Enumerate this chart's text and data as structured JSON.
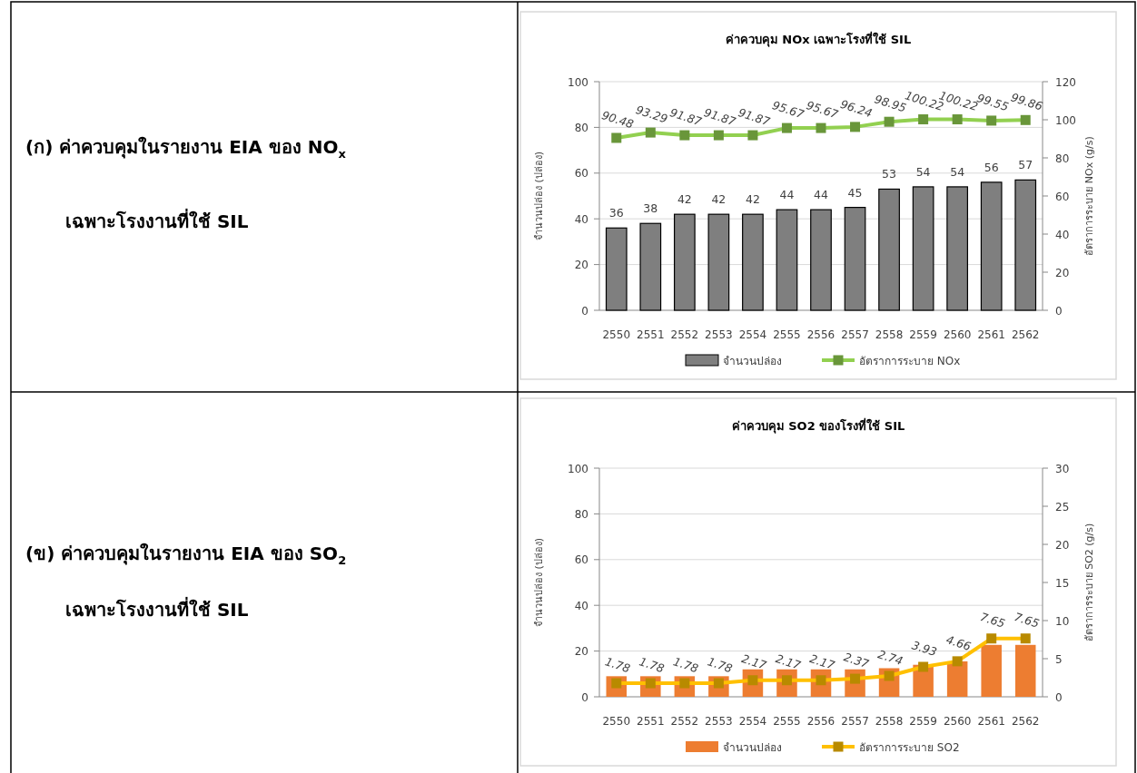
{
  "chart_data": [
    {
      "type": "bar",
      "title": "ค่าควบคุม NOx เฉพาะโรงที่ใช้ SIL",
      "ylabel": "จำนวนปล่อง (ปล่อง)",
      "y2label": "อัตราการระบาย NOx (g/s)",
      "annotations": [
        "(ก) ค่าควบคุมในรายงาน EIA ของ NO$_{x}$",
        "เฉพาะโรงงานที่ใช้ SIL"
      ],
      "categories": [
        "2550",
        "2551",
        "2552",
        "2553",
        "2554",
        "2555",
        "2556",
        "2557",
        "2558",
        "2559",
        "2560",
        "2561",
        "2562"
      ],
      "series": [
        {
          "name": "จำนวนปล่อง",
          "color": "#7f7f7f",
          "values": [
            36,
            38,
            42,
            42,
            42,
            44,
            44,
            45,
            53,
            54,
            54,
            56,
            57
          ],
          "value_labels": [
            "36",
            "38",
            "42",
            "42",
            "42",
            "44",
            "44",
            "45",
            "53",
            "54",
            "54",
            "56",
            "57"
          ]
        },
        {
          "name": "อัตราการระบาย NOx",
          "type": "line",
          "axis": "y2",
          "color": "#92d050",
          "marker": "square",
          "values": [
            90.48,
            93.29,
            91.87,
            91.87,
            91.87,
            95.67,
            95.67,
            96.24,
            98.95,
            100.22,
            100.22,
            99.55,
            99.86
          ],
          "value_labels": [
            "90.48",
            "93.29",
            "91.87",
            "91.87",
            "91.87",
            "95.67",
            "95.67",
            "96.24",
            "98.95",
            "100.22",
            "100.22",
            "99.55",
            "99.86"
          ]
        }
      ],
      "ylim": [
        0,
        100
      ],
      "yticks": [
        0,
        20,
        40,
        60,
        80,
        100
      ],
      "y2lim": [
        0,
        120
      ],
      "y2ticks": [
        0,
        20,
        40,
        60,
        80,
        100,
        120
      ],
      "grid": "y",
      "legend": "bottom"
    },
    {
      "type": "bar",
      "title": "ค่าควบคุม SO2 ของโรงที่ใช้ SIL",
      "ylabel": "จำนวนปล่อง (ปล่อง)",
      "y2label": "อัตราการระบาย SO2 (g/s)",
      "annotations": [
        "(ข) ค่าควบคุมในรายงาน EIA ของ SO$_{2}$",
        "เฉพาะโรงงานที่ใช้ SIL"
      ],
      "categories": [
        "2550",
        "2551",
        "2552",
        "2553",
        "2554",
        "2555",
        "2556",
        "2557",
        "2558",
        "2559",
        "2560",
        "2561",
        "2562"
      ],
      "series": [
        {
          "name": "จำนวนปล่อง",
          "color": "#ed7d31",
          "values": [
            9,
            9,
            9,
            9,
            12,
            12,
            12,
            12,
            12.5,
            14,
            15.5,
            22.7,
            22.7
          ]
        },
        {
          "name": "อัตราการระบาย SO2",
          "type": "line",
          "axis": "y2",
          "color": "#ffc000",
          "marker": "square",
          "values": [
            1.78,
            1.78,
            1.78,
            1.78,
            2.17,
            2.17,
            2.17,
            2.37,
            2.74,
            3.93,
            4.66,
            7.65,
            7.65
          ],
          "value_labels": [
            "1.78",
            "1.78",
            "1.78",
            "1.78",
            "2.17",
            "2.17",
            "2.17",
            "2.37",
            "2.74",
            "3.93",
            "4.66",
            "7.65",
            "7.65"
          ]
        }
      ],
      "ylim": [
        0,
        100
      ],
      "yticks": [
        0,
        20,
        40,
        60,
        80,
        100
      ],
      "y2lim": [
        0,
        30
      ],
      "y2ticks": [
        0,
        5,
        10,
        15,
        20,
        25,
        30
      ],
      "grid": "y",
      "legend": "bottom"
    }
  ]
}
